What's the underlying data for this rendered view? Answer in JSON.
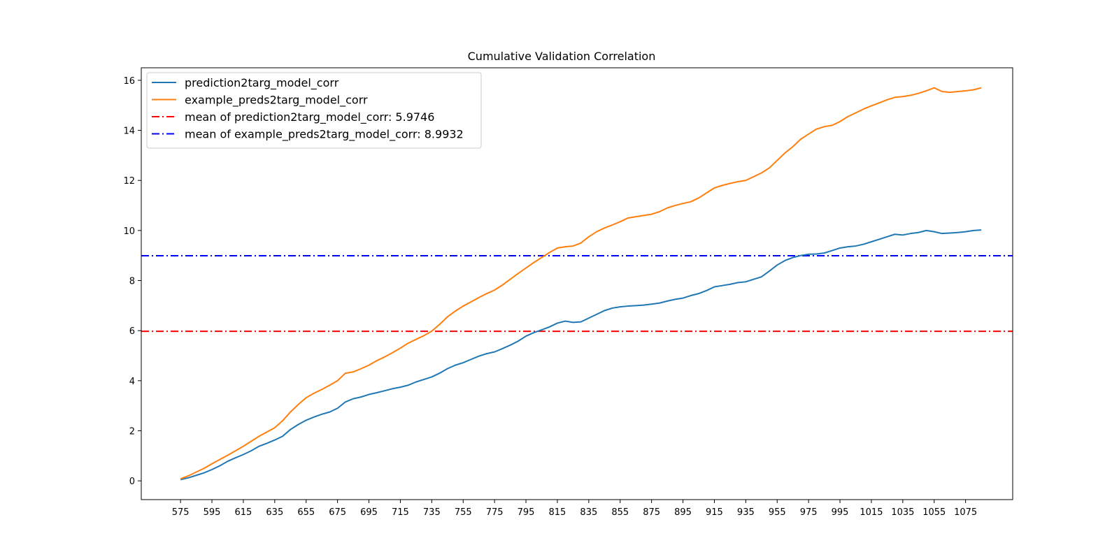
{
  "chart_data": {
    "type": "line",
    "title": "Cumulative Validation Correlation",
    "xlabel": "",
    "ylabel": "",
    "xlim": [
      550,
      1105
    ],
    "ylim": [
      -0.75,
      16.5
    ],
    "x_ticks": [
      575,
      595,
      615,
      635,
      655,
      675,
      695,
      715,
      735,
      755,
      775,
      795,
      815,
      835,
      855,
      875,
      895,
      915,
      935,
      955,
      975,
      995,
      1015,
      1035,
      1055,
      1075
    ],
    "y_ticks": [
      0,
      2,
      4,
      6,
      8,
      10,
      12,
      14,
      16
    ],
    "grid": false,
    "legend_position": "upper-left",
    "x": [
      575,
      580,
      585,
      590,
      595,
      600,
      605,
      610,
      615,
      620,
      625,
      630,
      635,
      640,
      645,
      650,
      655,
      660,
      665,
      670,
      675,
      680,
      685,
      690,
      695,
      700,
      705,
      710,
      715,
      720,
      725,
      730,
      735,
      740,
      745,
      750,
      755,
      760,
      765,
      770,
      775,
      780,
      785,
      790,
      795,
      800,
      805,
      810,
      815,
      820,
      825,
      830,
      835,
      840,
      845,
      850,
      855,
      860,
      865,
      870,
      875,
      880,
      885,
      890,
      895,
      900,
      905,
      910,
      915,
      920,
      925,
      930,
      935,
      940,
      945,
      950,
      955,
      960,
      965,
      970,
      975,
      980,
      985,
      990,
      995,
      1000,
      1005,
      1010,
      1015,
      1020,
      1025,
      1030,
      1035,
      1040,
      1045,
      1050,
      1055,
      1060,
      1065,
      1070,
      1075,
      1080,
      1085
    ],
    "series": [
      {
        "name": "prediction2targ_model_corr",
        "color": "#1f77b4",
        "style": "solid",
        "values": [
          0.05,
          0.12,
          0.22,
          0.32,
          0.45,
          0.6,
          0.78,
          0.92,
          1.05,
          1.2,
          1.38,
          1.5,
          1.63,
          1.78,
          2.05,
          2.25,
          2.42,
          2.55,
          2.66,
          2.75,
          2.9,
          3.15,
          3.28,
          3.35,
          3.45,
          3.52,
          3.6,
          3.68,
          3.74,
          3.82,
          3.95,
          4.05,
          4.15,
          4.3,
          4.48,
          4.62,
          4.72,
          4.85,
          4.98,
          5.08,
          5.15,
          5.28,
          5.42,
          5.58,
          5.78,
          5.92,
          6.03,
          6.15,
          6.3,
          6.38,
          6.33,
          6.35,
          6.5,
          6.65,
          6.8,
          6.9,
          6.95,
          6.98,
          7.0,
          7.02,
          7.06,
          7.1,
          7.18,
          7.25,
          7.3,
          7.4,
          7.48,
          7.6,
          7.75,
          7.8,
          7.85,
          7.92,
          7.95,
          8.05,
          8.15,
          8.38,
          8.62,
          8.8,
          8.92,
          9.0,
          9.05,
          9.06,
          9.1,
          9.2,
          9.3,
          9.35,
          9.38,
          9.45,
          9.55,
          9.65,
          9.75,
          9.85,
          9.82,
          9.88,
          9.92,
          10.0,
          9.95,
          9.88,
          9.9,
          9.92,
          9.95,
          10.0,
          10.02
        ]
      },
      {
        "name": "example_preds2targ_model_corr",
        "color": "#ff7f0e",
        "style": "solid",
        "values": [
          0.08,
          0.2,
          0.35,
          0.5,
          0.68,
          0.85,
          1.02,
          1.2,
          1.38,
          1.58,
          1.78,
          1.95,
          2.12,
          2.4,
          2.75,
          3.05,
          3.32,
          3.5,
          3.65,
          3.82,
          4.0,
          4.3,
          4.35,
          4.48,
          4.62,
          4.8,
          4.95,
          5.12,
          5.3,
          5.5,
          5.65,
          5.8,
          5.98,
          6.25,
          6.55,
          6.78,
          6.98,
          7.15,
          7.32,
          7.48,
          7.62,
          7.82,
          8.05,
          8.28,
          8.5,
          8.72,
          8.92,
          9.12,
          9.3,
          9.35,
          9.38,
          9.5,
          9.75,
          9.95,
          10.1,
          10.22,
          10.35,
          10.5,
          10.55,
          10.6,
          10.65,
          10.75,
          10.9,
          11.0,
          11.08,
          11.15,
          11.3,
          11.5,
          11.7,
          11.8,
          11.88,
          11.95,
          12.0,
          12.15,
          12.3,
          12.5,
          12.8,
          13.1,
          13.35,
          13.65,
          13.85,
          14.05,
          14.15,
          14.2,
          14.35,
          14.55,
          14.7,
          14.85,
          14.98,
          15.1,
          15.22,
          15.32,
          15.35,
          15.4,
          15.48,
          15.58,
          15.7,
          15.55,
          15.52,
          15.55,
          15.58,
          15.62,
          15.7
        ]
      }
    ],
    "hlines": [
      {
        "name": "mean of prediction2targ_model_corr: 5.9746",
        "y": 5.9746,
        "color": "#ff0000",
        "style": "dashdot"
      },
      {
        "name": "mean of example_preds2targ_model_corr: 8.9932",
        "y": 8.9932,
        "color": "#0000ff",
        "style": "dashdot"
      }
    ]
  }
}
